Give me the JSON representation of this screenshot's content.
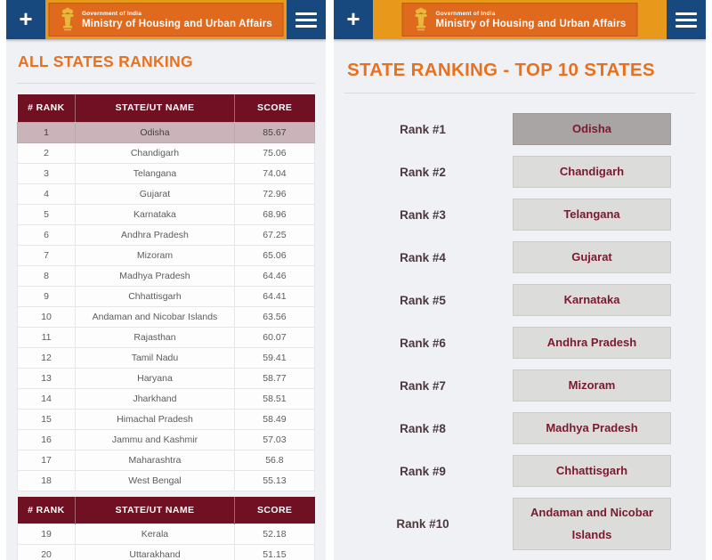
{
  "colors": {
    "blue": "#17497E",
    "amber": "#E8991C",
    "banner_orange": "#DF6A1E",
    "banner_border": "#C2541C",
    "title_orange": "#E8711F",
    "maroon": "#6F1123",
    "highlight_row": "#C8B4B9",
    "page_bg": "#EFF1F5",
    "box_gray": "#DCDCDA",
    "box_selected": "#A9A5A5",
    "box_text": "#7A1A2E",
    "emblem_gold": "#E6B83C"
  },
  "header": {
    "plus": "+",
    "gov": "Government of India",
    "ministry": "Ministry of Housing and Urban Affairs",
    "menu_icon": "hamburger-icon",
    "emblem_icon": "india-emblem-icon"
  },
  "left_panel": {
    "title": "ALL STATES RANKING",
    "table": {
      "columns": [
        "# RANK",
        "STATE/UT NAME",
        "SCORE"
      ],
      "rows": [
        {
          "rank": "1",
          "name": "Odisha",
          "score": "85.67",
          "highlight": true
        },
        {
          "rank": "2",
          "name": "Chandigarh",
          "score": "75.06"
        },
        {
          "rank": "3",
          "name": "Telangana",
          "score": "74.04"
        },
        {
          "rank": "4",
          "name": "Gujarat",
          "score": "72.96"
        },
        {
          "rank": "5",
          "name": "Karnataka",
          "score": "68.96"
        },
        {
          "rank": "6",
          "name": "Andhra Pradesh",
          "score": "67.25"
        },
        {
          "rank": "7",
          "name": "Mizoram",
          "score": "65.06"
        },
        {
          "rank": "8",
          "name": "Madhya Pradesh",
          "score": "64.46"
        },
        {
          "rank": "9",
          "name": "Chhattisgarh",
          "score": "64.41"
        },
        {
          "rank": "10",
          "name": "Andaman and Nicobar Islands",
          "score": "63.56"
        },
        {
          "rank": "11",
          "name": "Rajasthan",
          "score": "60.07"
        },
        {
          "rank": "12",
          "name": "Tamil Nadu",
          "score": "59.41"
        },
        {
          "rank": "13",
          "name": "Haryana",
          "score": "58.77"
        },
        {
          "rank": "14",
          "name": "Jharkhand",
          "score": "58.51"
        },
        {
          "rank": "15",
          "name": "Himachal Pradesh",
          "score": "58.49"
        },
        {
          "rank": "16",
          "name": "Jammu and Kashmir",
          "score": "57.03"
        },
        {
          "rank": "17",
          "name": "Maharashtra",
          "score": "56.8"
        },
        {
          "rank": "18",
          "name": "West Bengal",
          "score": "55.13"
        }
      ]
    },
    "table2": {
      "columns": [
        "# RANK",
        "STATE/UT NAME",
        "SCORE"
      ],
      "rows": [
        {
          "rank": "19",
          "name": "Kerala",
          "score": "52.18"
        },
        {
          "rank": "20",
          "name": "Uttarakhand",
          "score": "51.15"
        }
      ]
    }
  },
  "right_panel": {
    "title": "STATE RANKING - TOP 10 STATES",
    "items": [
      {
        "label": "Rank #1",
        "state": "Odisha",
        "selected": true
      },
      {
        "label": "Rank #2",
        "state": "Chandigarh"
      },
      {
        "label": "Rank #3",
        "state": "Telangana"
      },
      {
        "label": "Rank #4",
        "state": "Gujarat"
      },
      {
        "label": "Rank #5",
        "state": "Karnataka"
      },
      {
        "label": "Rank #6",
        "state": "Andhra Pradesh"
      },
      {
        "label": "Rank #7",
        "state": "Mizoram"
      },
      {
        "label": "Rank #8",
        "state": "Madhya Pradesh"
      },
      {
        "label": "Rank #9",
        "state": "Chhattisgarh"
      },
      {
        "label": "Rank #10",
        "state": "Andaman and Nicobar Islands"
      }
    ]
  }
}
